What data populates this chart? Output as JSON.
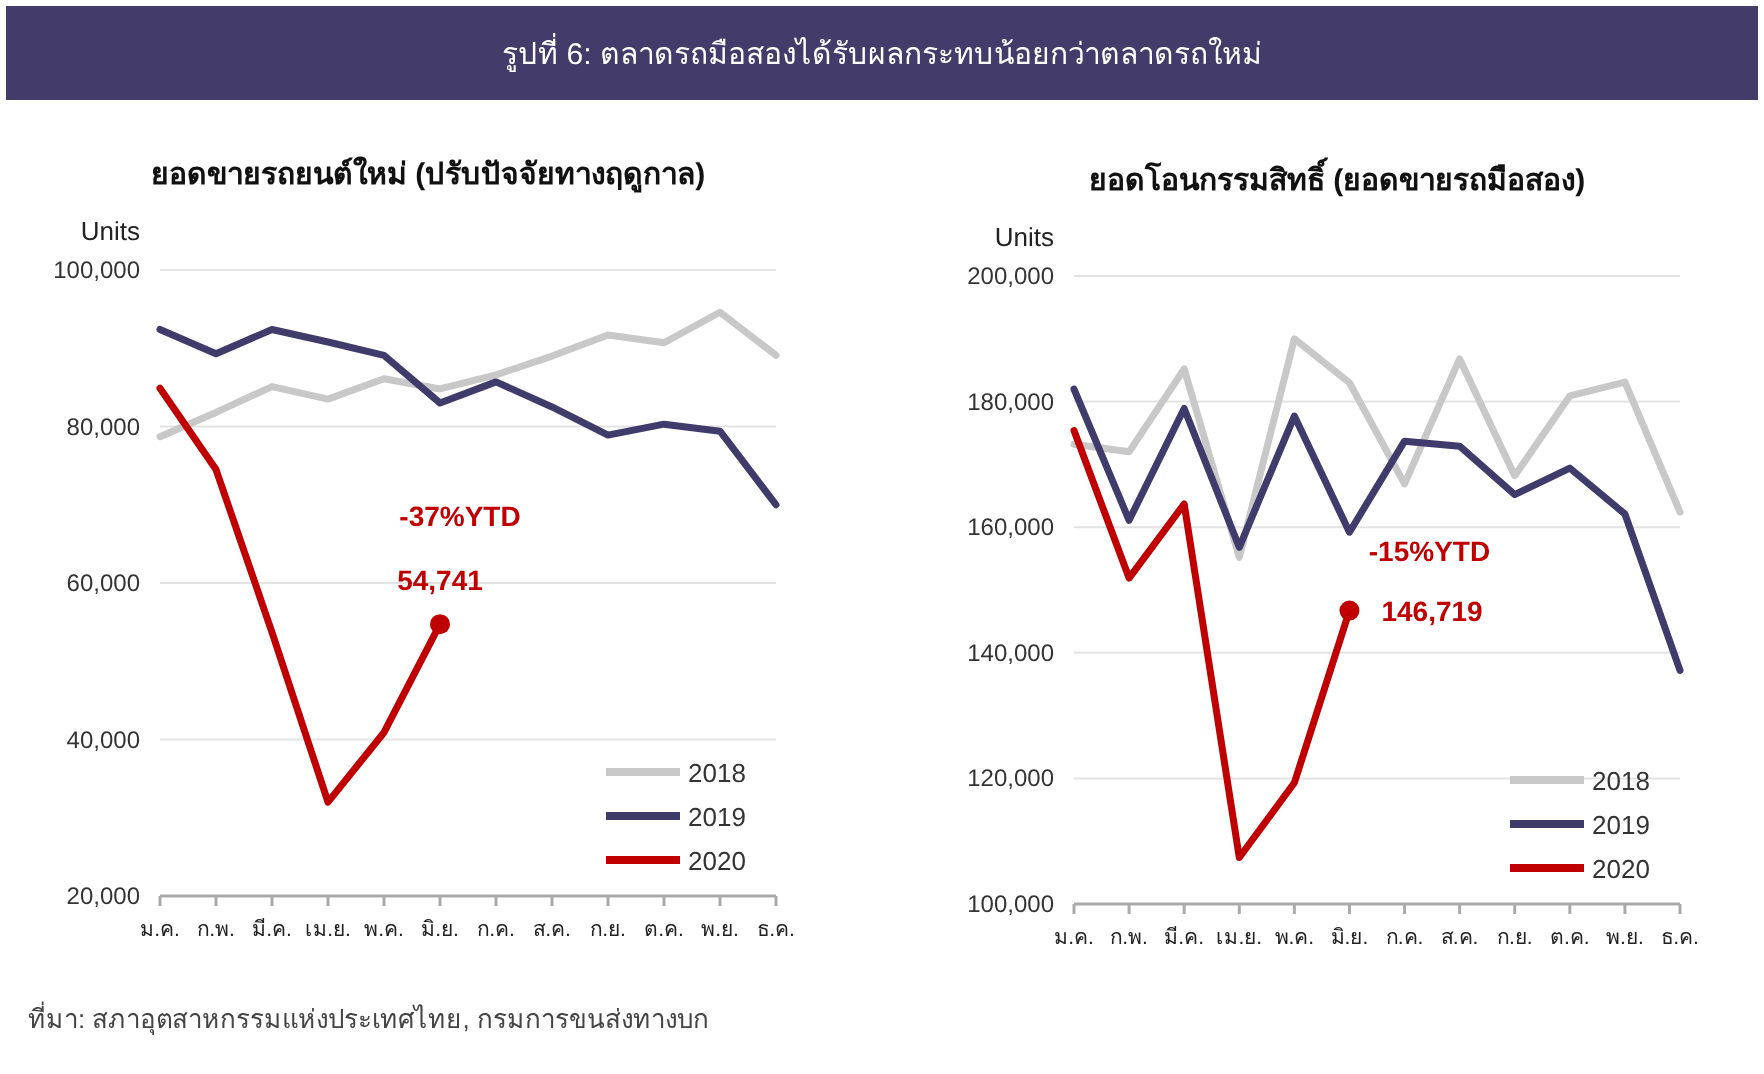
{
  "chart_data": [
    {
      "type": "other",
      "title": "รูปที่ 6: ตลาดรถมือสองได้รับผลกระทบน้อยกว่าตลาดรถใหม่",
      "annotations": [
        "ที่มา: สภาอุตสาหกรรมแห่งประเทศไทย, กรมการขนส่งทางบก"
      ]
    },
    {
      "type": "line",
      "title": "ยอดขายรถยนต์ใหม่ (ปรับปัจจัยทางฤดูกาล)",
      "ylabel": "Units",
      "categories": [
        "ม.ค.",
        "ก.พ.",
        "มี.ค.",
        "เม.ย.",
        "พ.ค.",
        "มิ.ย.",
        "ก.ค.",
        "ส.ค.",
        "ก.ย.",
        "ต.ค.",
        "พ.ย.",
        "ธ.ค."
      ],
      "series": [
        {
          "name": "2018",
          "color": "#c8c8c8",
          "values": [
            78700,
            81800,
            85100,
            83500,
            86100,
            84800,
            86600,
            89000,
            91700,
            90700,
            94600,
            89100
          ]
        },
        {
          "name": "2019",
          "color": "#3f3b6b",
          "values": [
            92400,
            89300,
            92400,
            90800,
            89100,
            83000,
            85700,
            82500,
            78900,
            80300,
            79400,
            70000
          ]
        },
        {
          "name": "2020",
          "color": "#c00000",
          "values": [
            84900,
            74500,
            53700,
            32000,
            40900,
            54741,
            null,
            null,
            null,
            null,
            null,
            null
          ]
        }
      ],
      "ylim": [
        20000,
        100000
      ],
      "yticks": [
        {
          "value": 20000,
          "label": "20,000"
        },
        {
          "value": 40000,
          "label": "40,000"
        },
        {
          "value": 60000,
          "label": "60,000"
        },
        {
          "value": 80000,
          "label": "80,000"
        },
        {
          "value": 100000,
          "label": "100,000"
        }
      ],
      "grid": "y",
      "legend": "bottom right",
      "annotations": [
        "-37%YTD",
        {
          "text": "54,741",
          "x": "มิ.ย.",
          "y": 54741
        }
      ]
    },
    {
      "type": "line",
      "title": "ยอดโอนกรรมสิทธิ์ (ยอดขายรถมือสอง)",
      "ylabel": "Units",
      "categories": [
        "ม.ค.",
        "ก.พ.",
        "มี.ค.",
        "เม.ย.",
        "พ.ค.",
        "มิ.ย.",
        "ก.ค.",
        "ส.ค.",
        "ก.ย.",
        "ต.ค.",
        "พ.ย.",
        "ธ.ค."
      ],
      "series": [
        {
          "name": "2018",
          "color": "#c8c8c8",
          "values": [
            173200,
            172000,
            185200,
            155200,
            190000,
            183000,
            166900,
            186800,
            168200,
            180900,
            183100,
            162400
          ]
        },
        {
          "name": "2019",
          "color": "#3f3b6b",
          "values": [
            182000,
            161100,
            178900,
            156800,
            177700,
            159200,
            173700,
            172900,
            165200,
            169400,
            162100,
            137200
          ]
        },
        {
          "name": "2020",
          "color": "#c00000",
          "values": [
            175400,
            151900,
            163700,
            107400,
            119300,
            146719,
            null,
            null,
            null,
            null,
            null,
            null
          ]
        }
      ],
      "ylim": [
        100000,
        200000
      ],
      "yticks": [
        {
          "value": 100000,
          "label": "100,000"
        },
        {
          "value": 120000,
          "label": "120,000"
        },
        {
          "value": 140000,
          "label": "140,000"
        },
        {
          "value": 160000,
          "label": "160,000"
        },
        {
          "value": 180000,
          "label": "180,000"
        },
        {
          "value": 200000,
          "label": "200,000"
        }
      ],
      "grid": "y",
      "legend": "bottom right",
      "annotations": [
        "-15%YTD",
        {
          "text": "146,719",
          "x": "มิ.ย.",
          "y": 146719
        }
      ]
    }
  ]
}
